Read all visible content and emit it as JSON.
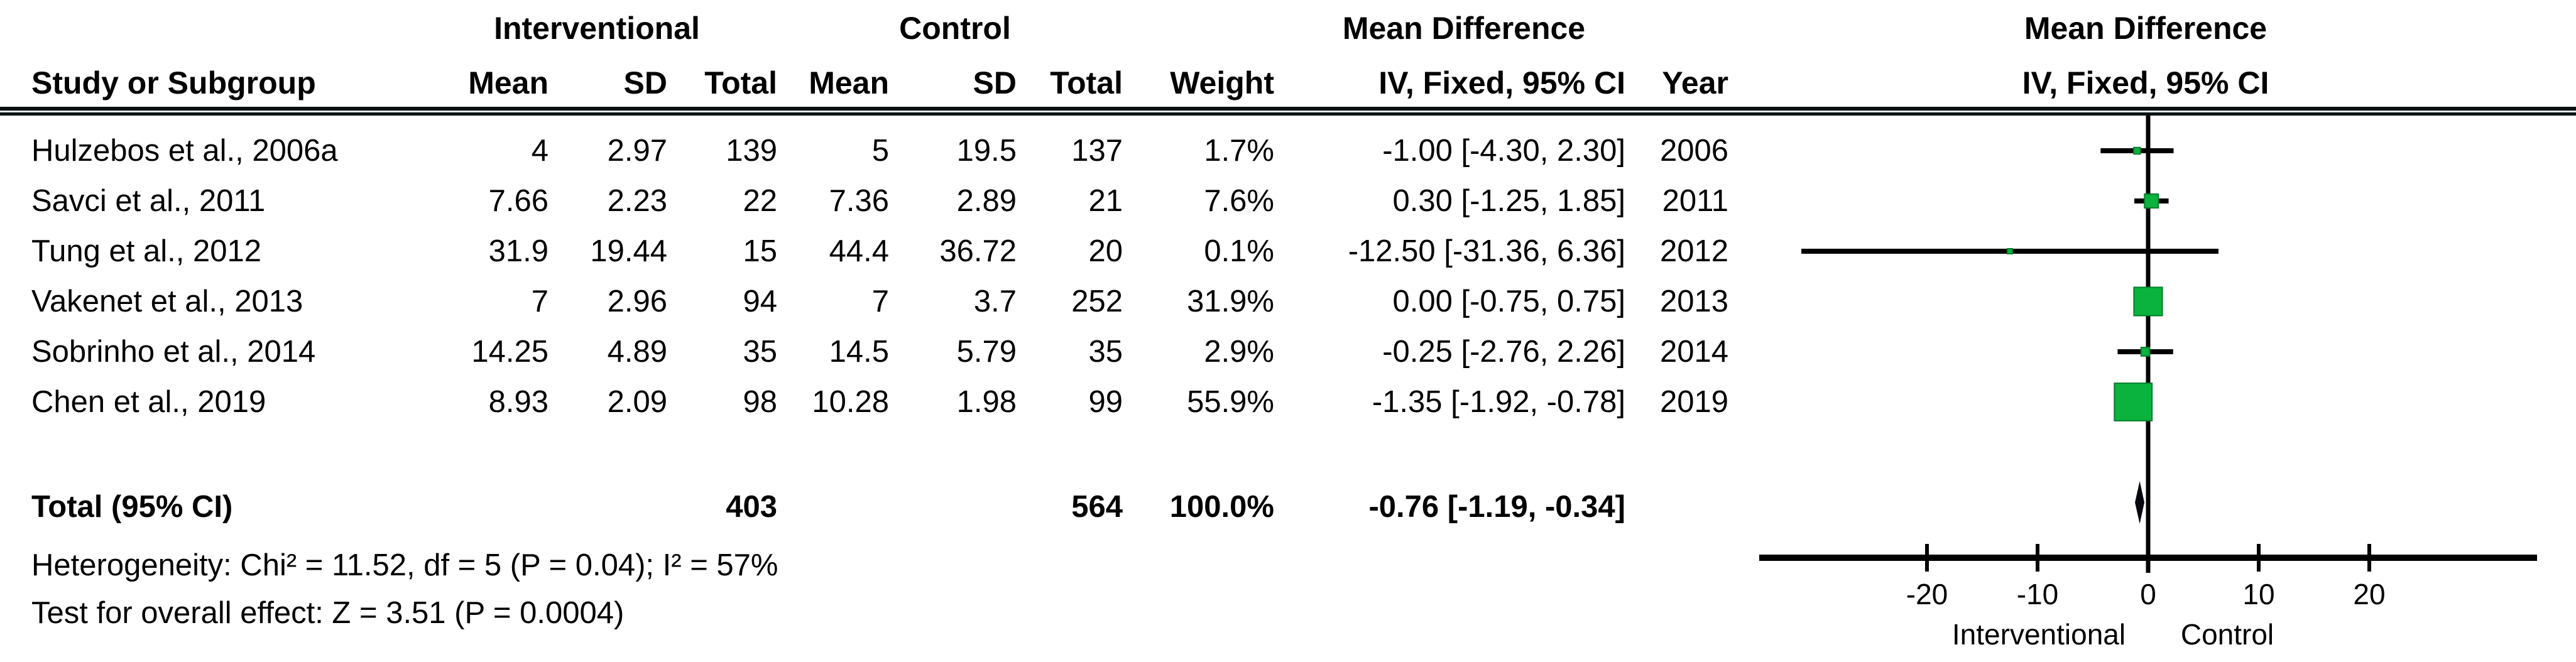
{
  "table": {
    "group_headers": {
      "interventional": "Interventional",
      "control": "Control",
      "mean_difference_left": "Mean Difference",
      "mean_difference_right": "Mean Difference"
    },
    "column_headers": {
      "study": "Study or Subgroup",
      "mean1": "Mean",
      "sd1": "SD",
      "total1": "Total",
      "mean2": "Mean",
      "sd2": "SD",
      "total2": "Total",
      "weight": "Weight",
      "iv_fixed_left": "IV, Fixed, 95% CI",
      "year": "Year",
      "iv_fixed_right": "IV, Fixed, 95% CI"
    },
    "rows": [
      {
        "study": "Hulzebos et al., 2006a",
        "i_mean": "4",
        "i_sd": "2.97",
        "i_total": "139",
        "c_mean": "5",
        "c_sd": "19.5",
        "c_total": "137",
        "weight": "1.7%",
        "ci": "-1.00 [-4.30, 2.30]",
        "year": "2006"
      },
      {
        "study": "Savci et al., 2011",
        "i_mean": "7.66",
        "i_sd": "2.23",
        "i_total": "22",
        "c_mean": "7.36",
        "c_sd": "2.89",
        "c_total": "21",
        "weight": "7.6%",
        "ci": "0.30 [-1.25, 1.85]",
        "year": "2011"
      },
      {
        "study": "Tung et al., 2012",
        "i_mean": "31.9",
        "i_sd": "19.44",
        "i_total": "15",
        "c_mean": "44.4",
        "c_sd": "36.72",
        "c_total": "20",
        "weight": "0.1%",
        "ci": "-12.50 [-31.36, 6.36]",
        "year": "2012"
      },
      {
        "study": "Vakenet et al., 2013",
        "i_mean": "7",
        "i_sd": "2.96",
        "i_total": "94",
        "c_mean": "7",
        "c_sd": "3.7",
        "c_total": "252",
        "weight": "31.9%",
        "ci": "0.00 [-0.75, 0.75]",
        "year": "2013"
      },
      {
        "study": "Sobrinho et al., 2014",
        "i_mean": "14.25",
        "i_sd": "4.89",
        "i_total": "35",
        "c_mean": "14.5",
        "c_sd": "5.79",
        "c_total": "35",
        "weight": "2.9%",
        "ci": "-0.25 [-2.76, 2.26]",
        "year": "2014"
      },
      {
        "study": "Chen et al., 2019",
        "i_mean": "8.93",
        "i_sd": "2.09",
        "i_total": "98",
        "c_mean": "10.28",
        "c_sd": "1.98",
        "c_total": "99",
        "weight": "55.9%",
        "ci": "-1.35 [-1.92, -0.78]",
        "year": "2019"
      }
    ],
    "total_row": {
      "label": "Total (95% CI)",
      "i_total": "403",
      "c_total": "564",
      "weight": "100.0%",
      "ci": "-0.76 [-1.19, -0.34]"
    },
    "footer": [
      "Heterogeneity: Chi² = 11.52, df = 5 (P = 0.04); I² = 57%",
      "Test for overall effect: Z = 3.51 (P = 0.0004)"
    ]
  },
  "chart_data": {
    "type": "scatter",
    "subtype": "forest-plot",
    "title": "Mean Difference",
    "subtitle": "IV, Fixed, 95% CI",
    "effect_measure": "Mean Difference, IV, Fixed, 95% CI",
    "studies": [
      {
        "name": "Hulzebos et al., 2006a",
        "year": 2006,
        "md": -1.0,
        "ci_low": -4.3,
        "ci_high": 2.3,
        "weight_pct": 1.7
      },
      {
        "name": "Savci et al., 2011",
        "year": 2011,
        "md": 0.3,
        "ci_low": -1.25,
        "ci_high": 1.85,
        "weight_pct": 7.6
      },
      {
        "name": "Tung et al., 2012",
        "year": 2012,
        "md": -12.5,
        "ci_low": -31.36,
        "ci_high": 6.36,
        "weight_pct": 0.1
      },
      {
        "name": "Vakenet et al., 2013",
        "year": 2013,
        "md": 0.0,
        "ci_low": -0.75,
        "ci_high": 0.75,
        "weight_pct": 31.9
      },
      {
        "name": "Sobrinho et al., 2014",
        "year": 2014,
        "md": -0.25,
        "ci_low": -2.76,
        "ci_high": 2.26,
        "weight_pct": 2.9
      },
      {
        "name": "Chen et al., 2019",
        "year": 2019,
        "md": -1.35,
        "ci_low": -1.92,
        "ci_high": -0.78,
        "weight_pct": 55.9
      }
    ],
    "overall": {
      "label": "Total (95% CI)",
      "md": -0.76,
      "ci_low": -1.19,
      "ci_high": -0.34
    },
    "axis": {
      "ticks": [
        -20,
        -10,
        0,
        10,
        20
      ],
      "xlim": [
        -35,
        35
      ],
      "favours_left": "Interventional",
      "favours_right": "Control"
    },
    "colors": {
      "marker_fill": "#0ab33e",
      "marker_stroke": "#067d2c",
      "diamond_fill": "#05060f",
      "line": "#000000"
    },
    "heterogeneity": "Chi² = 11.52, df = 5 (P = 0.04); I² = 57%",
    "overall_effect_test": "Z = 3.51 (P = 0.0004)"
  }
}
